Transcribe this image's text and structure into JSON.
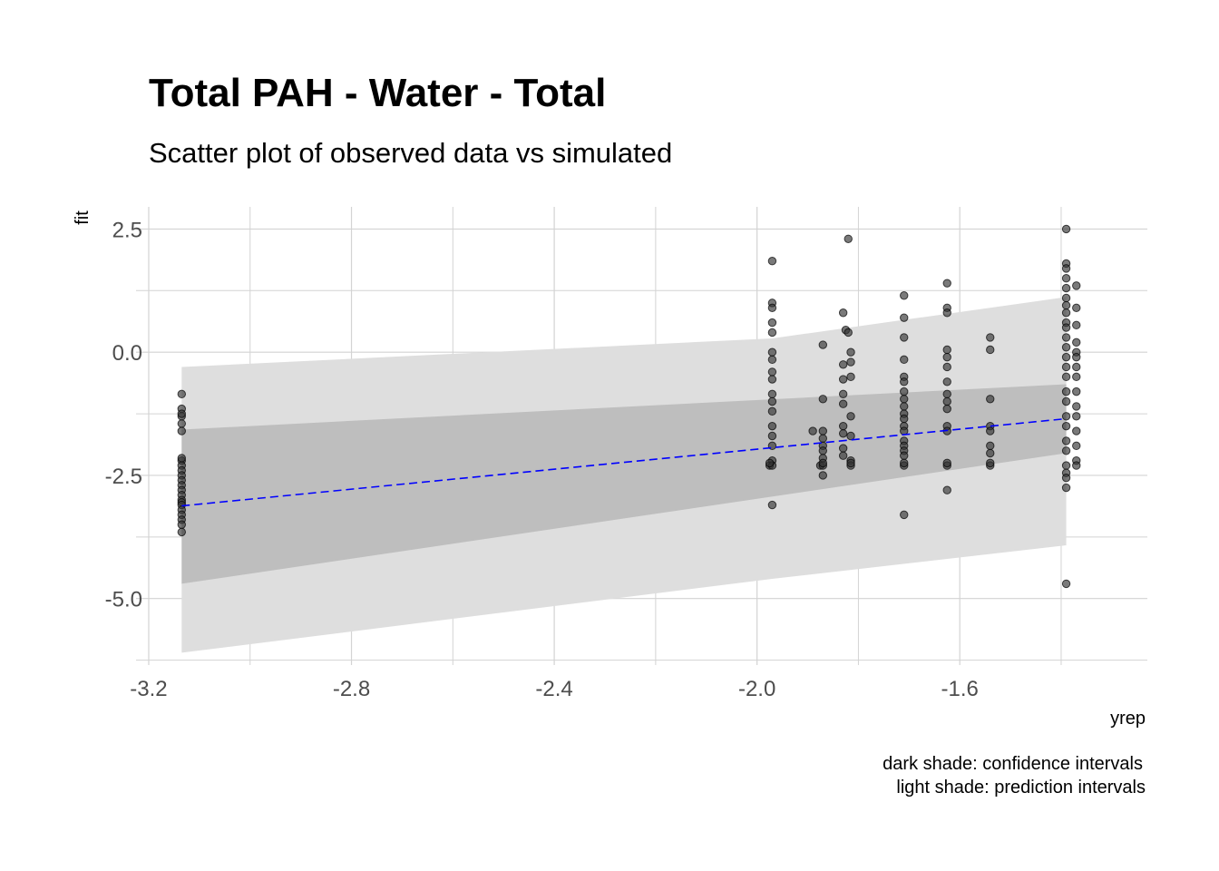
{
  "chart_data": {
    "type": "scatter",
    "title": "Total PAH - Water - Total",
    "subtitle": "Scatter plot of observed data vs simulated",
    "xlabel": "yrep",
    "ylabel": "fit",
    "xlim": [
      -3.225,
      -1.23
    ],
    "ylim": [
      -6.35,
      2.95
    ],
    "x_ticks": [
      -3.2,
      -2.8,
      -2.4,
      -2.0,
      -1.6
    ],
    "x_tick_labels": [
      "-3.2",
      "-2.8",
      "-2.4",
      "-2.0",
      "-1.6"
    ],
    "y_ticks": [
      2.5,
      0.0,
      -2.5,
      -5.0
    ],
    "y_tick_labels": [
      "2.5",
      "0.0",
      "-2.5",
      "-5.0"
    ],
    "grid": true,
    "caption": [
      "dark shade: confidence intervals",
      "light shade: prediction intervals"
    ],
    "colors": {
      "fit_line": "#0000ff",
      "confidence_band": "#bebebe",
      "prediction_band": "#dedede",
      "points": "#333333",
      "grid": "#d3d3d3"
    },
    "fit_line": {
      "x": [
        -3.135,
        -1.39
      ],
      "y": [
        -3.12,
        -1.35
      ]
    },
    "confidence_band": {
      "x": [
        -3.135,
        -1.39
      ],
      "lower": [
        -4.7,
        -2.05
      ],
      "upper": [
        -1.57,
        -0.65
      ]
    },
    "prediction_band": {
      "x": [
        -3.135,
        -1.97,
        -1.39
      ],
      "lower": [
        -6.1,
        -4.6,
        -3.92
      ],
      "upper": [
        -0.3,
        0.28,
        1.12
      ]
    },
    "points": {
      "x": [
        -3.135,
        -3.135,
        -3.135,
        -3.135,
        -3.135,
        -3.135,
        -3.135,
        -3.135,
        -3.135,
        -3.135,
        -3.135,
        -3.135,
        -3.135,
        -3.135,
        -3.135,
        -3.135,
        -3.135,
        -3.135,
        -3.135,
        -3.135,
        -3.135,
        -3.135,
        -3.135,
        -1.975,
        -1.97,
        -1.97,
        -1.97,
        -1.97,
        -1.97,
        -1.97,
        -1.97,
        -1.97,
        -1.97,
        -1.97,
        -1.97,
        -1.97,
        -1.97,
        -1.97,
        -1.97,
        -1.97,
        -1.97,
        -1.975,
        -1.97,
        -1.89,
        -1.875,
        -1.87,
        -1.87,
        -1.87,
        -1.87,
        -1.87,
        -1.87,
        -1.87,
        -1.87,
        -1.87,
        -1.87,
        -1.83,
        -1.825,
        -1.83,
        -1.83,
        -1.83,
        -1.83,
        -1.83,
        -1.83,
        -1.83,
        -1.83,
        -1.82,
        -1.82,
        -1.815,
        -1.815,
        -1.815,
        -1.815,
        -1.815,
        -1.815,
        -1.815,
        -1.815,
        -1.71,
        -1.71,
        -1.71,
        -1.71,
        -1.71,
        -1.71,
        -1.71,
        -1.71,
        -1.71,
        -1.71,
        -1.71,
        -1.71,
        -1.71,
        -1.71,
        -1.71,
        -1.71,
        -1.71,
        -1.71,
        -1.71,
        -1.71,
        -1.625,
        -1.625,
        -1.625,
        -1.625,
        -1.625,
        -1.625,
        -1.625,
        -1.625,
        -1.625,
        -1.625,
        -1.625,
        -1.625,
        -1.625,
        -1.625,
        -1.625,
        -1.54,
        -1.54,
        -1.54,
        -1.54,
        -1.54,
        -1.54,
        -1.54,
        -1.54,
        -1.54,
        -1.39,
        -1.39,
        -1.39,
        -1.39,
        -1.39,
        -1.39,
        -1.39,
        -1.39,
        -1.39,
        -1.39,
        -1.39,
        -1.39,
        -1.39,
        -1.39,
        -1.39,
        -1.39,
        -1.39,
        -1.39,
        -1.39,
        -1.39,
        -1.39,
        -1.39,
        -1.39,
        -1.39,
        -1.39,
        -1.39,
        -1.37,
        -1.37,
        -1.37,
        -1.37,
        -1.37,
        -1.37,
        -1.37,
        -1.37,
        -1.37,
        -1.37,
        -1.37,
        -1.37,
        -1.37,
        -1.37,
        -1.37
      ],
      "y": [
        -0.85,
        -1.15,
        -1.3,
        -1.45,
        -1.6,
        -2.2,
        -2.3,
        -2.4,
        -2.5,
        -2.6,
        -2.7,
        -2.8,
        -2.9,
        -3.0,
        -3.05,
        -3.1,
        -3.2,
        -3.3,
        -3.4,
        -3.5,
        -3.65,
        -1.25,
        -2.15,
        -2.3,
        1.85,
        1.0,
        0.9,
        0.6,
        0.4,
        0.0,
        -0.15,
        -0.4,
        -0.55,
        -0.85,
        -1.0,
        -1.2,
        -1.5,
        -1.7,
        -1.9,
        -2.2,
        -2.3,
        -2.25,
        -3.1,
        -1.6,
        -2.3,
        0.15,
        -0.95,
        -1.6,
        -1.75,
        -1.9,
        -2.0,
        -2.15,
        -2.3,
        -2.5,
        -2.25,
        0.8,
        0.45,
        -0.25,
        -0.55,
        -0.85,
        -1.05,
        -1.5,
        -1.65,
        -1.95,
        -2.1,
        2.3,
        0.4,
        0.0,
        -0.2,
        -0.5,
        -1.3,
        -1.7,
        -2.2,
        -2.3,
        -2.25,
        1.15,
        0.7,
        0.3,
        -0.15,
        -0.5,
        -0.6,
        -0.8,
        -0.95,
        -1.1,
        -1.25,
        -1.35,
        -1.5,
        -1.6,
        -1.8,
        -1.9,
        -2.0,
        -2.1,
        -2.3,
        -3.3,
        -2.25,
        1.4,
        0.9,
        0.8,
        0.05,
        -0.1,
        -0.3,
        -0.6,
        -0.85,
        -1.0,
        -1.15,
        -1.5,
        -1.6,
        -2.3,
        -2.8,
        -2.25,
        0.3,
        0.05,
        -0.95,
        -1.5,
        -1.6,
        -1.9,
        -2.05,
        -2.3,
        -2.25,
        2.5,
        1.8,
        1.7,
        1.5,
        1.3,
        1.1,
        0.95,
        0.8,
        0.6,
        0.5,
        0.3,
        0.1,
        -0.1,
        -0.3,
        -0.5,
        -0.8,
        -1.0,
        -1.3,
        -1.5,
        -1.8,
        -2.0,
        -2.3,
        -2.45,
        -2.55,
        -2.75,
        -4.7,
        1.35,
        0.9,
        0.55,
        0.2,
        0.0,
        -0.1,
        -0.3,
        -0.5,
        -0.8,
        -1.1,
        -1.3,
        -1.6,
        -1.9,
        -2.2,
        -2.3
      ]
    }
  }
}
